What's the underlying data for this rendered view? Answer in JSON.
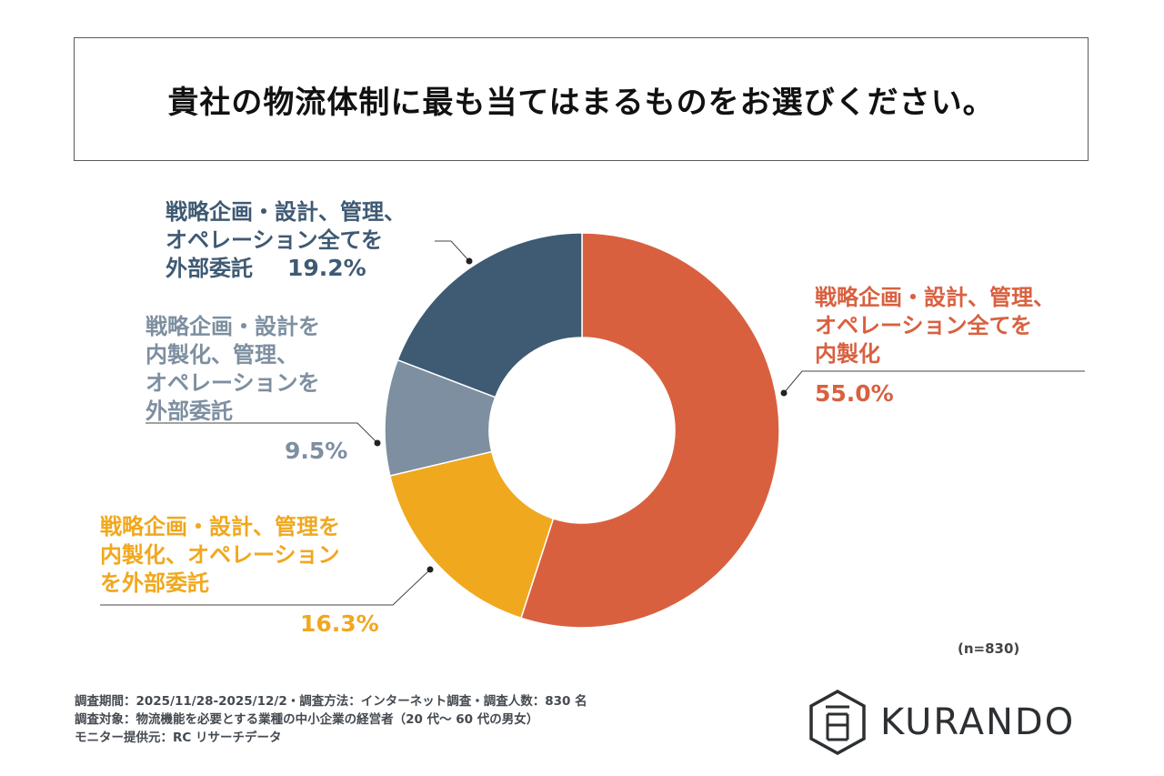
{
  "title": "貴社の物流体制に最も当てはまるものをお選びください。",
  "chart_data": {
    "type": "pie",
    "donut": true,
    "slices": [
      {
        "label_lines": [
          "戦略企画・設計、管理、",
          "オペレーション全てを",
          "内製化"
        ],
        "value": 55.0,
        "pct_text": "55.0%",
        "color": "#d9603f"
      },
      {
        "label_lines": [
          "戦略企画・設計、管理を",
          "内製化、オペレーション",
          "を外部委託"
        ],
        "value": 16.3,
        "pct_text": "16.3%",
        "color": "#f0a81f"
      },
      {
        "label_lines": [
          "戦略企画・設計を",
          "内製化、管理、",
          "オペレーションを",
          "外部委託"
        ],
        "value": 9.5,
        "pct_text": "9.5%",
        "color": "#7d8fa0"
      },
      {
        "label_lines": [
          "戦略企画・設計、管理、",
          "オペレーション全てを",
          "外部委託"
        ],
        "value": 19.2,
        "pct_text": "19.2%",
        "color": "#3f5a73"
      }
    ],
    "sample_note": "(n=830)"
  },
  "footer": {
    "line1": "調査期間：2025/11/28-2025/12/2・調査方法：インターネット調査・調査人数：830 名",
    "line2": "調査対象：物流機能を必要とする業種の中小企業の経営者（20 代〜 60 代の男女）",
    "line3": "モニター提供元：RC リサーチデータ"
  },
  "logo": {
    "text": "KURANDO",
    "icon": "kurando-logo-icon"
  }
}
